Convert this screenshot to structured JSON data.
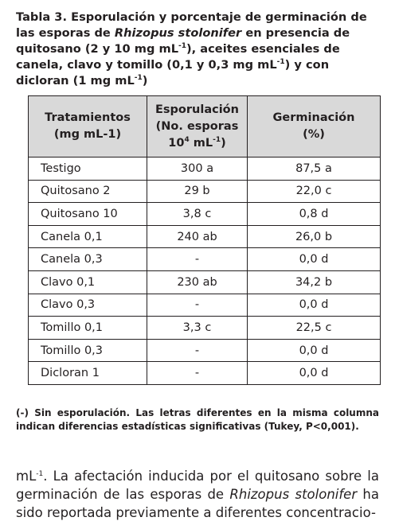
{
  "caption": {
    "label": "Tabla 3.",
    "parts": [
      "Esporulación y porcentaje de germinación de las esporas de ",
      "Rhizopus stolonifer",
      " en presencia de quitosano (2 y 10 mg mL",
      "-1",
      "), aceites esenciales de canela, clavo y tomillo (0,1 y  0,3 mg mL",
      "-1",
      ") y con dicloran (1 mg mL",
      "-1",
      ")"
    ]
  },
  "table": {
    "headers": [
      [
        "Tratamientos",
        "(mg mL-1)"
      ],
      [
        "Esporulación",
        "(No. esporas",
        "10",
        "4",
        " mL",
        "-1",
        ")"
      ],
      [
        "Germinación",
        "(%)"
      ]
    ],
    "rows": [
      [
        "Testigo",
        "300 a",
        "87,5 a"
      ],
      [
        "Quitosano 2",
        "29 b",
        "22,0 c"
      ],
      [
        "Quitosano 10",
        "3,8 c",
        "0,8 d"
      ],
      [
        "Canela 0,1",
        "240 ab",
        "26,0 b"
      ],
      [
        "Canela 0,3",
        "-",
        "0,0 d"
      ],
      [
        "Clavo 0,1",
        "230 ab",
        "34,2 b"
      ],
      [
        "Clavo 0,3",
        "-",
        "0,0 d"
      ],
      [
        "Tomillo 0,1",
        "3,3 c",
        "22,5 c"
      ],
      [
        "Tomillo 0,3",
        "-",
        "0,0 d"
      ],
      [
        "Dicloran 1",
        "-",
        "0,0 d"
      ]
    ]
  },
  "footnote": "(-) Sin esporulación. Las letras diferentes en la misma columna indican diferencias estadísticas significativas (Tukey, P<0,001).",
  "body": {
    "parts": [
      "mL",
      "-1",
      ". La afectación inducida por el quitosano sobre la germinación de las esporas de ",
      "Rhizopus stolonifer",
      " ha sido reportada previamente a diferentes concentracio-"
    ]
  }
}
